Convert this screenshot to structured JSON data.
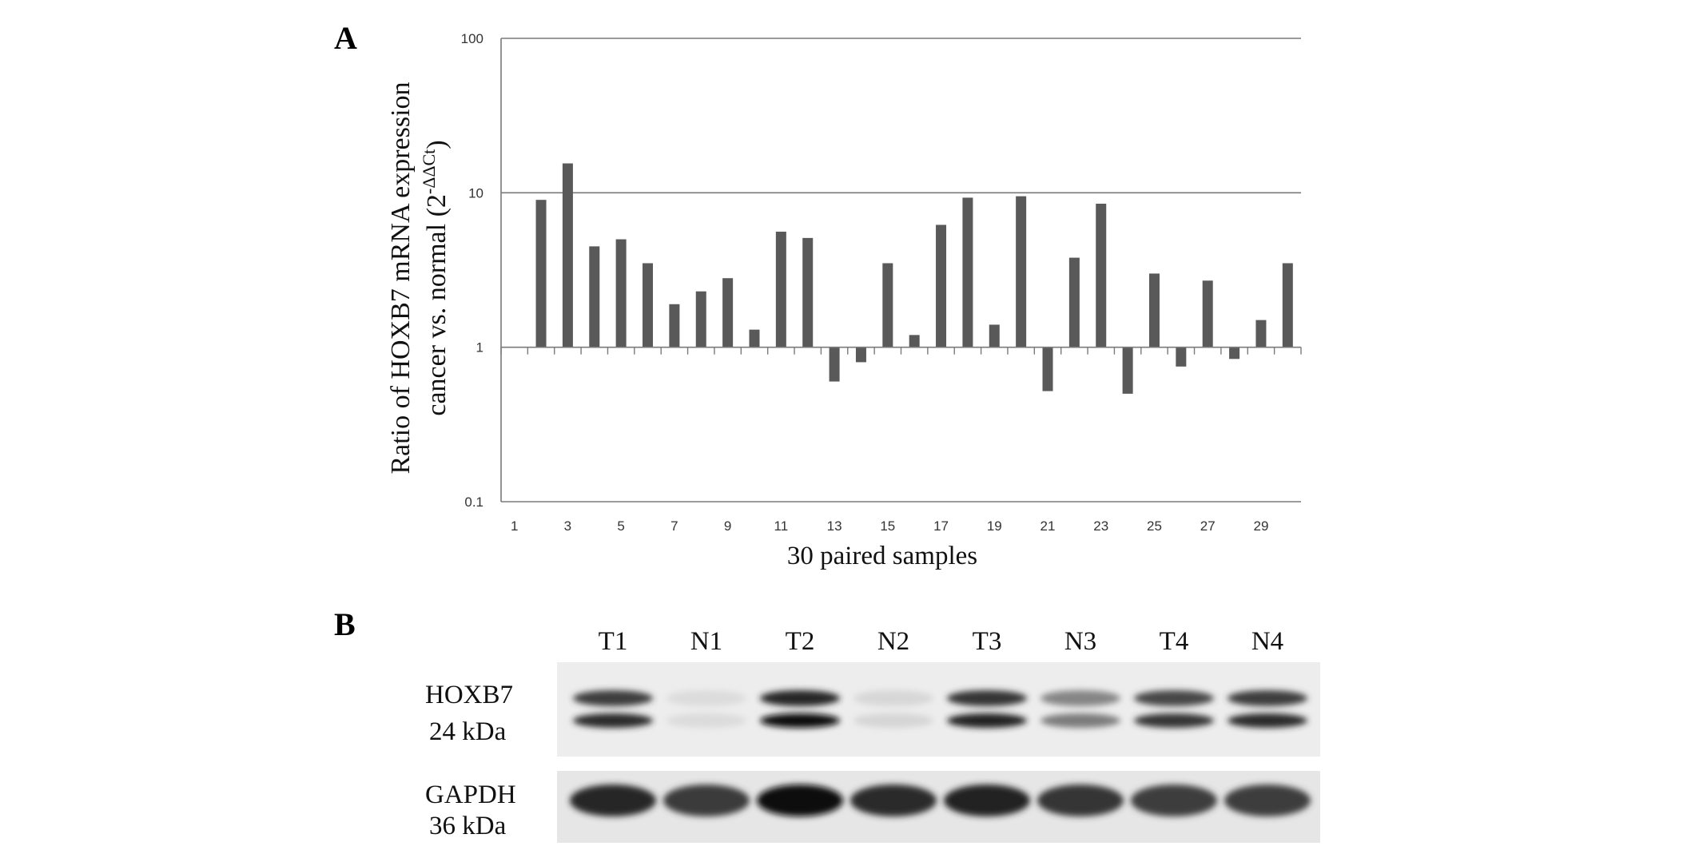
{
  "figure": {
    "panels": [
      {
        "label": "A"
      },
      {
        "label": "B"
      }
    ]
  },
  "chart_data": {
    "type": "bar",
    "title": "",
    "xlabel": "30 paired samples",
    "ylabel_line1": "Ratio of HOXB7 mRNA expression",
    "ylabel_line2_prefix": "cancer vs. normal (2",
    "ylabel_line2_superscript": "-ΔΔCt",
    "ylabel_line2_suffix": ")",
    "yscale": "log",
    "ylim": [
      0.1,
      100
    ],
    "ybaseline": 1,
    "yticks": [
      "0.1",
      "1",
      "10",
      "100"
    ],
    "grid_major_y": true,
    "categories": [
      "1",
      "2",
      "3",
      "4",
      "5",
      "6",
      "7",
      "8",
      "9",
      "10",
      "11",
      "12",
      "13",
      "14",
      "15",
      "16",
      "17",
      "18",
      "19",
      "20",
      "21",
      "22",
      "23",
      "24",
      "25",
      "26",
      "27",
      "28",
      "29",
      "30"
    ],
    "xtick_labels_shown": [
      "1",
      "3",
      "5",
      "7",
      "9",
      "11",
      "13",
      "15",
      "17",
      "19",
      "21",
      "23",
      "25",
      "27",
      "29"
    ],
    "values": [
      1.0,
      9.0,
      15.5,
      4.5,
      5.0,
      3.5,
      1.9,
      2.3,
      2.8,
      1.3,
      5.6,
      5.1,
      0.6,
      0.8,
      3.5,
      1.2,
      6.2,
      9.3,
      1.4,
      9.5,
      0.52,
      3.8,
      8.5,
      0.5,
      3.0,
      0.75,
      2.7,
      0.84,
      1.5,
      3.5
    ],
    "bar_color": "#595959"
  },
  "blot": {
    "lanes": [
      "T1",
      "N1",
      "T2",
      "N2",
      "T3",
      "N3",
      "T4",
      "N4"
    ],
    "rows": [
      {
        "protein": "HOXB7",
        "size": "24 kDa",
        "intensities": [
          0.88,
          0.05,
          1.0,
          0.08,
          0.92,
          0.5,
          0.82,
          0.88
        ]
      },
      {
        "protein": "GAPDH",
        "size": "36 kDa",
        "intensities": [
          0.9,
          0.8,
          1.0,
          0.88,
          0.92,
          0.82,
          0.78,
          0.78
        ]
      }
    ]
  }
}
